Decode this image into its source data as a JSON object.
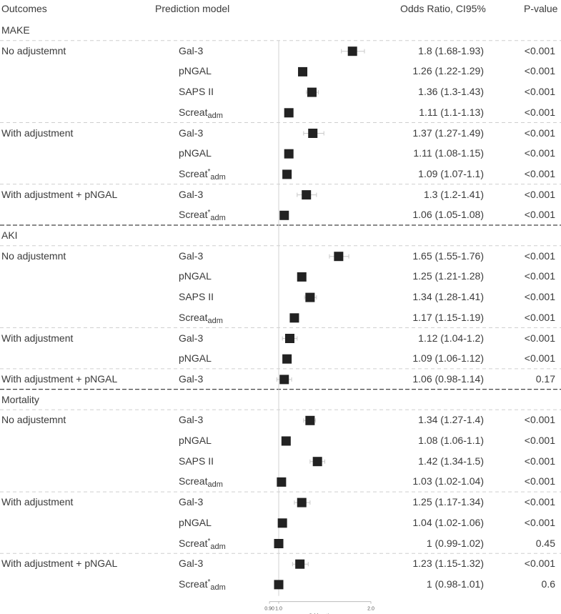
{
  "header": {
    "outcomes": "Outcomes",
    "model": "Prediction model",
    "or_ci": "Odds Ratio, CI95%",
    "pvalue": "P-value"
  },
  "sections": [
    {
      "name": "MAKE",
      "groups": [
        {
          "label": "No adjustemnt",
          "rows": [
            {
              "model": "Gal-3",
              "ci": "1.8 (1.68-1.93)",
              "p": "<0.001"
            },
            {
              "model": "pNGAL",
              "ci": "1.26 (1.22-1.29)",
              "p": "<0.001"
            },
            {
              "model": "SAPS II",
              "ci": "1.36 (1.3-1.43)",
              "p": "<0.001"
            },
            {
              "model_base": "Screat",
              "model_star": "",
              "model_sub": "adm",
              "ci": "1.11 (1.1-1.13)",
              "p": "<0.001"
            }
          ]
        },
        {
          "label": "With adjustment",
          "rows": [
            {
              "model": "Gal-3",
              "ci": "1.37 (1.27-1.49)",
              "p": "<0.001"
            },
            {
              "model": "pNGAL",
              "ci": "1.11 (1.08-1.15)",
              "p": "<0.001"
            },
            {
              "model_base": "Screat",
              "model_star": "*",
              "model_sub": "adm",
              "ci": "1.09 (1.07-1.1)",
              "p": "<0.001"
            }
          ]
        },
        {
          "label": "With adjustment + pNGAL",
          "rows": [
            {
              "model": "Gal-3",
              "ci": "1.3 (1.2-1.41)",
              "p": "<0.001"
            },
            {
              "model_base": "Screat",
              "model_star": "*",
              "model_sub": "adm",
              "ci": "1.06 (1.05-1.08)",
              "p": "<0.001"
            }
          ]
        }
      ]
    },
    {
      "name": "AKI",
      "groups": [
        {
          "label": "No adjustemnt",
          "rows": [
            {
              "model": "Gal-3",
              "ci": "1.65 (1.55-1.76)",
              "p": "<0.001"
            },
            {
              "model": "pNGAL",
              "ci": "1.25 (1.21-1.28)",
              "p": "<0.001"
            },
            {
              "model": "SAPS II",
              "ci": "1.34 (1.28-1.41)",
              "p": "<0.001"
            },
            {
              "model_base": "Screat",
              "model_star": "",
              "model_sub": "adm",
              "ci": "1.17 (1.15-1.19)",
              "p": "<0.001"
            }
          ]
        },
        {
          "label": "With adjustment",
          "rows": [
            {
              "model": "Gal-3",
              "ci": "1.12 (1.04-1.2)",
              "p": "<0.001"
            },
            {
              "model": "pNGAL",
              "ci": "1.09 (1.06-1.12)",
              "p": "<0.001"
            }
          ]
        },
        {
          "label": "With adjustment + pNGAL",
          "rows": [
            {
              "model": "Gal-3",
              "ci": "1.06 (0.98-1.14)",
              "p": "0.17"
            }
          ]
        }
      ]
    },
    {
      "name": "Mortality",
      "groups": [
        {
          "label": "No adjustemnt",
          "rows": [
            {
              "model": "Gal-3",
              "ci": "1.34 (1.27-1.4)",
              "p": "<0.001"
            },
            {
              "model": "pNGAL",
              "ci": "1.08 (1.06-1.1)",
              "p": "<0.001"
            },
            {
              "model": "SAPS II",
              "ci": "1.42 (1.34-1.5)",
              "p": "<0.001"
            },
            {
              "model_base": "Screat",
              "model_star": "",
              "model_sub": "adm",
              "ci": "1.03 (1.02-1.04)",
              "p": "<0.001"
            }
          ]
        },
        {
          "label": "With adjustment",
          "rows": [
            {
              "model": "Gal-3",
              "ci": "1.25 (1.17-1.34)",
              "p": "<0.001"
            },
            {
              "model": "pNGAL",
              "ci": "1.04 (1.02-1.06)",
              "p": "<0.001"
            },
            {
              "model_base": "Screat",
              "model_star": "*",
              "model_sub": "adm",
              "ci": "1 (0.99-1.02)",
              "p": "0.45"
            }
          ]
        },
        {
          "label": "With adjustment + pNGAL",
          "rows": [
            {
              "model": "Gal-3",
              "ci": "1.23 (1.15-1.32)",
              "p": "<0.001"
            },
            {
              "model_base": "Screat",
              "model_star": "*",
              "model_sub": "adm",
              "ci": "1 (0.98-1.01)",
              "p": "0.6"
            }
          ]
        }
      ]
    }
  ],
  "chart_data": {
    "type": "forest",
    "xlabel": "Odds ratio",
    "x_ticks": [
      "0.90",
      "1.0",
      "2.0"
    ],
    "xlim": [
      0.9,
      2.0
    ],
    "reference_line": 1.0,
    "rows": [
      {
        "outcome": "MAKE",
        "group": "No adjustemnt",
        "model": "Gal-3",
        "or": 1.8,
        "lo": 1.68,
        "hi": 1.93
      },
      {
        "outcome": "MAKE",
        "group": "No adjustemnt",
        "model": "pNGAL",
        "or": 1.26,
        "lo": 1.22,
        "hi": 1.29
      },
      {
        "outcome": "MAKE",
        "group": "No adjustemnt",
        "model": "SAPS II",
        "or": 1.36,
        "lo": 1.3,
        "hi": 1.43
      },
      {
        "outcome": "MAKE",
        "group": "No adjustemnt",
        "model": "Screatadm",
        "or": 1.11,
        "lo": 1.1,
        "hi": 1.13
      },
      {
        "outcome": "MAKE",
        "group": "With adjustment",
        "model": "Gal-3",
        "or": 1.37,
        "lo": 1.27,
        "hi": 1.49
      },
      {
        "outcome": "MAKE",
        "group": "With adjustment",
        "model": "pNGAL",
        "or": 1.11,
        "lo": 1.08,
        "hi": 1.15
      },
      {
        "outcome": "MAKE",
        "group": "With adjustment",
        "model": "Screat*adm",
        "or": 1.09,
        "lo": 1.07,
        "hi": 1.1
      },
      {
        "outcome": "MAKE",
        "group": "With adjustment + pNGAL",
        "model": "Gal-3",
        "or": 1.3,
        "lo": 1.2,
        "hi": 1.41
      },
      {
        "outcome": "MAKE",
        "group": "With adjustment + pNGAL",
        "model": "Screat*adm",
        "or": 1.06,
        "lo": 1.05,
        "hi": 1.08
      },
      {
        "outcome": "AKI",
        "group": "No adjustemnt",
        "model": "Gal-3",
        "or": 1.65,
        "lo": 1.55,
        "hi": 1.76
      },
      {
        "outcome": "AKI",
        "group": "No adjustemnt",
        "model": "pNGAL",
        "or": 1.25,
        "lo": 1.21,
        "hi": 1.28
      },
      {
        "outcome": "AKI",
        "group": "No adjustemnt",
        "model": "SAPS II",
        "or": 1.34,
        "lo": 1.28,
        "hi": 1.41
      },
      {
        "outcome": "AKI",
        "group": "No adjustemnt",
        "model": "Screatadm",
        "or": 1.17,
        "lo": 1.15,
        "hi": 1.19
      },
      {
        "outcome": "AKI",
        "group": "With adjustment",
        "model": "Gal-3",
        "or": 1.12,
        "lo": 1.04,
        "hi": 1.2
      },
      {
        "outcome": "AKI",
        "group": "With adjustment",
        "model": "pNGAL",
        "or": 1.09,
        "lo": 1.06,
        "hi": 1.12
      },
      {
        "outcome": "AKI",
        "group": "With adjustment + pNGAL",
        "model": "Gal-3",
        "or": 1.06,
        "lo": 0.98,
        "hi": 1.14
      },
      {
        "outcome": "Mortality",
        "group": "No adjustemnt",
        "model": "Gal-3",
        "or": 1.34,
        "lo": 1.27,
        "hi": 1.4
      },
      {
        "outcome": "Mortality",
        "group": "No adjustemnt",
        "model": "pNGAL",
        "or": 1.08,
        "lo": 1.06,
        "hi": 1.1
      },
      {
        "outcome": "Mortality",
        "group": "No adjustemnt",
        "model": "SAPS II",
        "or": 1.42,
        "lo": 1.34,
        "hi": 1.5
      },
      {
        "outcome": "Mortality",
        "group": "No adjustemnt",
        "model": "Screatadm",
        "or": 1.03,
        "lo": 1.02,
        "hi": 1.04
      },
      {
        "outcome": "Mortality",
        "group": "With adjustment",
        "model": "Gal-3",
        "or": 1.25,
        "lo": 1.17,
        "hi": 1.34
      },
      {
        "outcome": "Mortality",
        "group": "With adjustment",
        "model": "pNGAL",
        "or": 1.04,
        "lo": 1.02,
        "hi": 1.06
      },
      {
        "outcome": "Mortality",
        "group": "With adjustment",
        "model": "Screat*adm",
        "or": 1.0,
        "lo": 0.99,
        "hi": 1.02
      },
      {
        "outcome": "Mortality",
        "group": "With adjustment + pNGAL",
        "model": "Gal-3",
        "or": 1.23,
        "lo": 1.15,
        "hi": 1.32
      },
      {
        "outcome": "Mortality",
        "group": "With adjustment + pNGAL",
        "model": "Screat*adm",
        "or": 1.0,
        "lo": 0.98,
        "hi": 1.01
      }
    ]
  }
}
